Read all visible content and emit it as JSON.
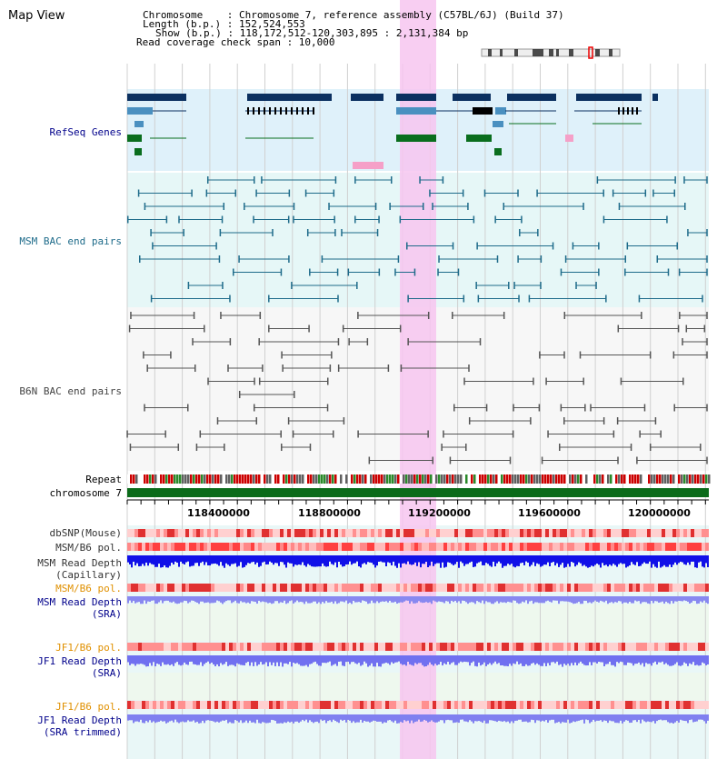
{
  "page": {
    "title": "Map View"
  },
  "info": {
    "chromosome": "Chromosome    : Chromosome 7, reference assembly (C57BL/6J) (Build 37)",
    "length": "Length (b.p.) : 152,524,553",
    "show": "Show (b.p.) : 118,172,512-120,303,895 : 2,131,384 bp",
    "coverage": "Read coverage check span : 10,000"
  },
  "tracks": {
    "refseq": "RefSeq Genes",
    "msm_bac": "MSM BAC end pairs",
    "b6n_bac": "B6N BAC end pairs",
    "repeat": "Repeat",
    "chromosome": "chromosome 7",
    "dbsnp": "dbSNP(Mouse)",
    "msm_b6_pol": "MSM/B6 pol.",
    "msm_depth_cap_1": "MSM Read Depth",
    "msm_depth_cap_2": "(Capillary)",
    "msm_b6_pol2": "MSM/B6 pol.",
    "msm_depth_sra_1": "MSM Read Depth",
    "msm_depth_sra_2": "(SRA)",
    "jf1_b6_pol": "JF1/B6 pol.",
    "jf1_depth_sra_1": "JF1 Read Depth",
    "jf1_depth_sra_2": "(SRA)",
    "jf1_b6_pol2": "JF1/B6 pol.",
    "jf1_depth_trim_1": "JF1 Read Depth",
    "jf1_depth_trim_2": "(SRA trimmed)"
  },
  "axis": {
    "ticks": [
      "118400000",
      "118800000",
      "119200000",
      "119600000",
      "120000000"
    ]
  },
  "colors": {
    "refseq_dark": "#0b3060",
    "refseq_light": "#4a90c0",
    "gene_green": "#0a6e1e",
    "msm_bac": "#1e6b8a",
    "b6n_bac": "#555555",
    "highlight": "#f7c6f0",
    "label_blue": "#00008b",
    "label_orange": "#e09000"
  }
}
